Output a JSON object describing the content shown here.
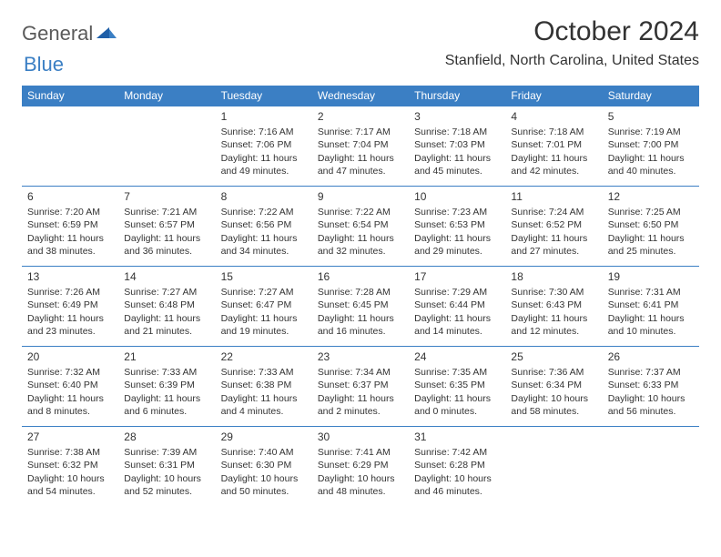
{
  "logo": {
    "general": "General",
    "blue": "Blue"
  },
  "title": "October 2024",
  "location": "Stanfield, North Carolina, United States",
  "colors": {
    "header_bg": "#3b7fc4",
    "header_text": "#ffffff",
    "border": "#3b7fc4",
    "body_text": "#333333",
    "logo_gray": "#5a5a5a",
    "logo_blue": "#3b7fc4",
    "background": "#ffffff"
  },
  "daysOfWeek": [
    "Sunday",
    "Monday",
    "Tuesday",
    "Wednesday",
    "Thursday",
    "Friday",
    "Saturday"
  ],
  "startOffset": 2,
  "days": [
    {
      "n": 1,
      "sunrise": "7:16 AM",
      "sunset": "7:06 PM",
      "daylight": "11 hours and 49 minutes."
    },
    {
      "n": 2,
      "sunrise": "7:17 AM",
      "sunset": "7:04 PM",
      "daylight": "11 hours and 47 minutes."
    },
    {
      "n": 3,
      "sunrise": "7:18 AM",
      "sunset": "7:03 PM",
      "daylight": "11 hours and 45 minutes."
    },
    {
      "n": 4,
      "sunrise": "7:18 AM",
      "sunset": "7:01 PM",
      "daylight": "11 hours and 42 minutes."
    },
    {
      "n": 5,
      "sunrise": "7:19 AM",
      "sunset": "7:00 PM",
      "daylight": "11 hours and 40 minutes."
    },
    {
      "n": 6,
      "sunrise": "7:20 AM",
      "sunset": "6:59 PM",
      "daylight": "11 hours and 38 minutes."
    },
    {
      "n": 7,
      "sunrise": "7:21 AM",
      "sunset": "6:57 PM",
      "daylight": "11 hours and 36 minutes."
    },
    {
      "n": 8,
      "sunrise": "7:22 AM",
      "sunset": "6:56 PM",
      "daylight": "11 hours and 34 minutes."
    },
    {
      "n": 9,
      "sunrise": "7:22 AM",
      "sunset": "6:54 PM",
      "daylight": "11 hours and 32 minutes."
    },
    {
      "n": 10,
      "sunrise": "7:23 AM",
      "sunset": "6:53 PM",
      "daylight": "11 hours and 29 minutes."
    },
    {
      "n": 11,
      "sunrise": "7:24 AM",
      "sunset": "6:52 PM",
      "daylight": "11 hours and 27 minutes."
    },
    {
      "n": 12,
      "sunrise": "7:25 AM",
      "sunset": "6:50 PM",
      "daylight": "11 hours and 25 minutes."
    },
    {
      "n": 13,
      "sunrise": "7:26 AM",
      "sunset": "6:49 PM",
      "daylight": "11 hours and 23 minutes."
    },
    {
      "n": 14,
      "sunrise": "7:27 AM",
      "sunset": "6:48 PM",
      "daylight": "11 hours and 21 minutes."
    },
    {
      "n": 15,
      "sunrise": "7:27 AM",
      "sunset": "6:47 PM",
      "daylight": "11 hours and 19 minutes."
    },
    {
      "n": 16,
      "sunrise": "7:28 AM",
      "sunset": "6:45 PM",
      "daylight": "11 hours and 16 minutes."
    },
    {
      "n": 17,
      "sunrise": "7:29 AM",
      "sunset": "6:44 PM",
      "daylight": "11 hours and 14 minutes."
    },
    {
      "n": 18,
      "sunrise": "7:30 AM",
      "sunset": "6:43 PM",
      "daylight": "11 hours and 12 minutes."
    },
    {
      "n": 19,
      "sunrise": "7:31 AM",
      "sunset": "6:41 PM",
      "daylight": "11 hours and 10 minutes."
    },
    {
      "n": 20,
      "sunrise": "7:32 AM",
      "sunset": "6:40 PM",
      "daylight": "11 hours and 8 minutes."
    },
    {
      "n": 21,
      "sunrise": "7:33 AM",
      "sunset": "6:39 PM",
      "daylight": "11 hours and 6 minutes."
    },
    {
      "n": 22,
      "sunrise": "7:33 AM",
      "sunset": "6:38 PM",
      "daylight": "11 hours and 4 minutes."
    },
    {
      "n": 23,
      "sunrise": "7:34 AM",
      "sunset": "6:37 PM",
      "daylight": "11 hours and 2 minutes."
    },
    {
      "n": 24,
      "sunrise": "7:35 AM",
      "sunset": "6:35 PM",
      "daylight": "11 hours and 0 minutes."
    },
    {
      "n": 25,
      "sunrise": "7:36 AM",
      "sunset": "6:34 PM",
      "daylight": "10 hours and 58 minutes."
    },
    {
      "n": 26,
      "sunrise": "7:37 AM",
      "sunset": "6:33 PM",
      "daylight": "10 hours and 56 minutes."
    },
    {
      "n": 27,
      "sunrise": "7:38 AM",
      "sunset": "6:32 PM",
      "daylight": "10 hours and 54 minutes."
    },
    {
      "n": 28,
      "sunrise": "7:39 AM",
      "sunset": "6:31 PM",
      "daylight": "10 hours and 52 minutes."
    },
    {
      "n": 29,
      "sunrise": "7:40 AM",
      "sunset": "6:30 PM",
      "daylight": "10 hours and 50 minutes."
    },
    {
      "n": 30,
      "sunrise": "7:41 AM",
      "sunset": "6:29 PM",
      "daylight": "10 hours and 48 minutes."
    },
    {
      "n": 31,
      "sunrise": "7:42 AM",
      "sunset": "6:28 PM",
      "daylight": "10 hours and 46 minutes."
    }
  ],
  "labels": {
    "sunrise": "Sunrise:",
    "sunset": "Sunset:",
    "daylight": "Daylight:"
  }
}
